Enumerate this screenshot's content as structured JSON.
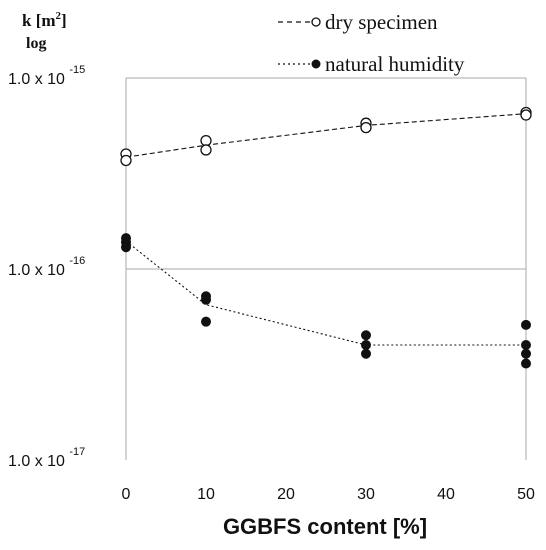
{
  "chart_data": {
    "type": "scatter",
    "ylabel_main": "k [m",
    "ylabel_sup": "2",
    "ylabel_close": "]",
    "ylabel_sub": "log",
    "xlabel": "GGBFS content [%]",
    "y_scale": "log",
    "ylim": [
      1e-17,
      1e-15
    ],
    "xlim": [
      0,
      50
    ],
    "x_ticks": [
      "0",
      "10",
      "20",
      "30",
      "40",
      "50"
    ],
    "x_tick_values": [
      0,
      10,
      20,
      30,
      40,
      50
    ],
    "y_ticks": [
      {
        "value": 1e-15,
        "base": "1.0 x 10",
        "exp": "-15"
      },
      {
        "value": 1e-16,
        "base": "1.0 x 10",
        "exp": "-16"
      },
      {
        "value": 1e-17,
        "base": "1.0 x 10",
        "exp": "-17"
      }
    ],
    "grid": "horizontal",
    "legend_position": "top-right",
    "series": [
      {
        "name": "dry specimen",
        "marker": "open-circle",
        "line": "dashed",
        "color": "#111111",
        "points": [
          [
            0,
            4e-16
          ],
          [
            0,
            3.7e-16
          ],
          [
            10,
            4.7e-16
          ],
          [
            10,
            4.2e-16
          ],
          [
            30,
            5.8e-16
          ],
          [
            30,
            5.5e-16
          ],
          [
            50,
            6.6e-16
          ],
          [
            50,
            6.4e-16
          ]
        ],
        "trend": [
          [
            0,
            3.85e-16
          ],
          [
            10,
            4.45e-16
          ],
          [
            30,
            5.65e-16
          ],
          [
            50,
            6.5e-16
          ]
        ]
      },
      {
        "name": "natural humidity",
        "marker": "filled-circle",
        "line": "dotted",
        "color": "#111111",
        "points": [
          [
            0,
            1.45e-16
          ],
          [
            0,
            1.38e-16
          ],
          [
            0,
            1.3e-16
          ],
          [
            10,
            7.2e-17
          ],
          [
            10,
            6.9e-17
          ],
          [
            10,
            5.3e-17
          ],
          [
            30,
            4.5e-17
          ],
          [
            30,
            4e-17
          ],
          [
            30,
            3.6e-17
          ],
          [
            50,
            5.1e-17
          ],
          [
            50,
            4e-17
          ],
          [
            50,
            3.6e-17
          ],
          [
            50,
            3.2e-17
          ]
        ],
        "trend": [
          [
            0,
            1.4e-16
          ],
          [
            10,
            6.5e-17
          ],
          [
            30,
            4e-17
          ],
          [
            50,
            4e-17
          ]
        ]
      }
    ]
  }
}
